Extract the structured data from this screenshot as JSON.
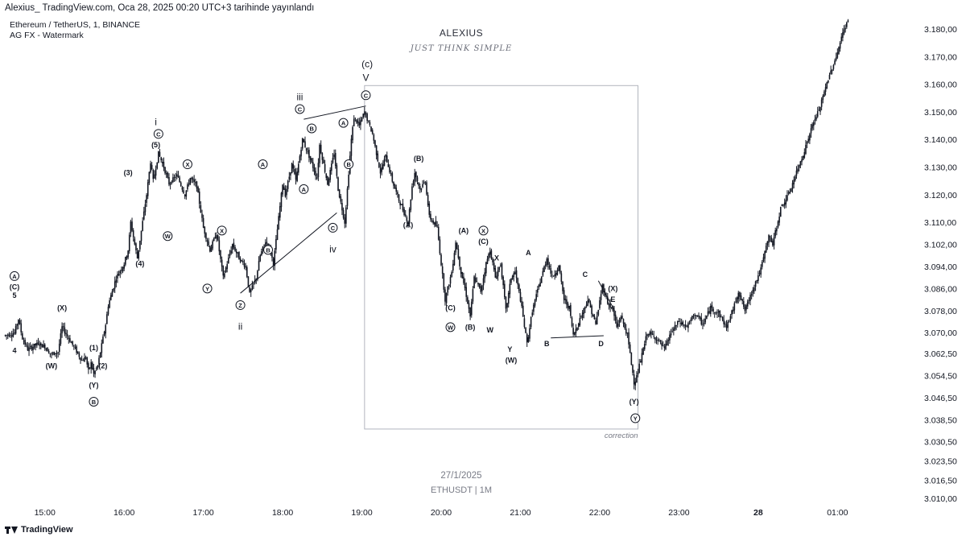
{
  "header": {
    "published_line": "Alexius_ TradingView.com, Oca 28, 2025 00:20 UTC+3 tarihinde yayınlandı",
    "symbol_line": "Ethereum / TetherUS, 1, BINANCE",
    "indicator_line": "AG FX - Watermark"
  },
  "watermark": {
    "title": "ALEXIUS",
    "subtitle": "JUST THINK SIMPLE",
    "date": "27/1/2025",
    "pair": "ETHUSDT | 1M"
  },
  "footer": {
    "brand": "TradingView"
  },
  "colors": {
    "candle": "#131722",
    "box": "#b2b5be",
    "line": "#131722"
  },
  "chart_data": {
    "type": "line",
    "price_ticks": [
      "3.180,00",
      "3.170,00",
      "3.160,00",
      "3.150,00",
      "3.140,00",
      "3.130,00",
      "3.120,00",
      "3.110,00",
      "3.102,00",
      "3.094,00",
      "3.086,00",
      "3.078,00",
      "3.070,00",
      "3.062,50",
      "3.054,50",
      "3.046,50",
      "3.038,50",
      "3.030,50",
      "3.023,50",
      "3.016,50",
      "3.010,00"
    ],
    "time_ticks": [
      "15:00",
      "16:00",
      "17:00",
      "18:00",
      "19:00",
      "20:00",
      "21:00",
      "22:00",
      "23:00",
      "28",
      "01:00"
    ],
    "x_unit": "minutes since 27/1/2025 14:30",
    "path": [
      [
        0,
        3069
      ],
      [
        7,
        3070
      ],
      [
        10,
        3075
      ],
      [
        13,
        3068
      ],
      [
        17,
        3064
      ],
      [
        25,
        3066
      ],
      [
        30,
        3065
      ],
      [
        35,
        3062
      ],
      [
        40,
        3063
      ],
      [
        43,
        3072
      ],
      [
        48,
        3068
      ],
      [
        53,
        3064
      ],
      [
        58,
        3060
      ],
      [
        61,
        3061
      ],
      [
        63,
        3056
      ],
      [
        65,
        3059
      ],
      [
        67,
        3055
      ],
      [
        70,
        3058
      ],
      [
        76,
        3073
      ],
      [
        78,
        3080
      ],
      [
        84,
        3090
      ],
      [
        90,
        3095
      ],
      [
        93,
        3100
      ],
      [
        95,
        3110
      ],
      [
        98,
        3102
      ],
      [
        100,
        3097
      ],
      [
        107,
        3120
      ],
      [
        110,
        3132
      ],
      [
        112,
        3125
      ],
      [
        116,
        3135
      ],
      [
        120,
        3130
      ],
      [
        124,
        3124
      ],
      [
        130,
        3127
      ],
      [
        136,
        3120
      ],
      [
        140,
        3126
      ],
      [
        145,
        3123
      ],
      [
        150,
        3108
      ],
      [
        155,
        3100
      ],
      [
        160,
        3106
      ],
      [
        165,
        3090
      ],
      [
        172,
        3102
      ],
      [
        177,
        3097
      ],
      [
        182,
        3094
      ],
      [
        185,
        3084
      ],
      [
        190,
        3090
      ],
      [
        193,
        3098
      ],
      [
        197,
        3103
      ],
      [
        200,
        3101
      ],
      [
        203,
        3095
      ],
      [
        210,
        3124
      ],
      [
        212,
        3120
      ],
      [
        217,
        3131
      ],
      [
        220,
        3125
      ],
      [
        225,
        3140
      ],
      [
        230,
        3134
      ],
      [
        236,
        3126
      ],
      [
        238,
        3138
      ],
      [
        244,
        3124
      ],
      [
        249,
        3135
      ],
      [
        252,
        3122
      ],
      [
        257,
        3110
      ],
      [
        262,
        3140
      ],
      [
        264,
        3148
      ],
      [
        268,
        3145
      ],
      [
        272,
        3150
      ],
      [
        278,
        3142
      ],
      [
        284,
        3128
      ],
      [
        288,
        3134
      ],
      [
        293,
        3125
      ],
      [
        298,
        3118
      ],
      [
        305,
        3110
      ],
      [
        308,
        3123
      ],
      [
        310,
        3128
      ],
      [
        314,
        3122
      ],
      [
        318,
        3125
      ],
      [
        321,
        3112
      ],
      [
        327,
        3108
      ],
      [
        330,
        3095
      ],
      [
        333,
        3082
      ],
      [
        338,
        3092
      ],
      [
        341,
        3103
      ],
      [
        345,
        3092
      ],
      [
        348,
        3086
      ],
      [
        352,
        3076
      ],
      [
        355,
        3090
      ],
      [
        360,
        3085
      ],
      [
        364,
        3095
      ],
      [
        367,
        3100
      ],
      [
        371,
        3090
      ],
      [
        375,
        3095
      ],
      [
        379,
        3078
      ],
      [
        383,
        3090
      ],
      [
        386,
        3092
      ],
      [
        390,
        3082
      ],
      [
        395,
        3066
      ],
      [
        399,
        3078
      ],
      [
        404,
        3087
      ],
      [
        410,
        3097
      ],
      [
        414,
        3090
      ],
      [
        419,
        3094
      ],
      [
        423,
        3082
      ],
      [
        427,
        3079
      ],
      [
        430,
        3069
      ],
      [
        435,
        3075
      ],
      [
        441,
        3082
      ],
      [
        447,
        3073
      ],
      [
        452,
        3087
      ],
      [
        456,
        3081
      ],
      [
        460,
        3078
      ],
      [
        463,
        3072
      ],
      [
        466,
        3076
      ],
      [
        471,
        3069
      ],
      [
        476,
        3052
      ],
      [
        478,
        3054
      ],
      [
        481,
        3060
      ],
      [
        486,
        3070
      ],
      [
        493,
        3068
      ],
      [
        499,
        3064
      ],
      [
        504,
        3070
      ],
      [
        510,
        3074
      ],
      [
        516,
        3072
      ],
      [
        522,
        3077
      ],
      [
        528,
        3073
      ],
      [
        534,
        3079
      ],
      [
        540,
        3077
      ],
      [
        546,
        3072
      ],
      [
        552,
        3080
      ],
      [
        555,
        3085
      ],
      [
        560,
        3078
      ],
      [
        566,
        3086
      ],
      [
        572,
        3093
      ],
      [
        578,
        3105
      ],
      [
        581,
        3102
      ],
      [
        587,
        3115
      ],
      [
        593,
        3120
      ],
      [
        599,
        3128
      ],
      [
        605,
        3136
      ],
      [
        611,
        3145
      ],
      [
        617,
        3152
      ],
      [
        623,
        3162
      ],
      [
        629,
        3170
      ],
      [
        635,
        3180
      ],
      [
        638,
        3183
      ]
    ],
    "box": {
      "x": [
        272,
        479
      ],
      "y": [
        3035.1,
        3159.5
      ],
      "label": "correction"
    },
    "trend_lines": [
      [
        [
          178,
          3084.3
        ],
        [
          251,
          3113.4
        ]
      ],
      [
        [
          226,
          3147.3
        ],
        [
          273,
          3152.1
        ]
      ],
      [
        [
          449,
          3088.8
        ],
        [
          461,
          3078.3
        ]
      ],
      [
        [
          413,
          3068.1
        ],
        [
          453,
          3068.9
        ]
      ]
    ],
    "labels": [
      {
        "t": "5",
        "x": 7,
        "y": 3083.5
      },
      {
        "t": "4",
        "x": 7,
        "y": 3063.5
      },
      {
        "t": "(C)",
        "x": 7,
        "y": 3086.5
      },
      {
        "t": "A",
        "c": true,
        "x": 7,
        "y": 3090.5
      },
      {
        "t": "(X)",
        "x": 43,
        "y": 3079
      },
      {
        "t": "(W)",
        "x": 35,
        "y": 3058
      },
      {
        "t": "(1)",
        "x": 67,
        "y": 3064.5
      },
      {
        "t": "(2)",
        "x": 74,
        "y": 3058
      },
      {
        "t": "(Y)",
        "x": 67,
        "y": 3051
      },
      {
        "t": "B",
        "c": true,
        "x": 67,
        "y": 3045
      },
      {
        "t": "(3)",
        "x": 93,
        "y": 3128
      },
      {
        "t": "(4)",
        "x": 102,
        "y": 3095
      },
      {
        "t": "(5)",
        "x": 114,
        "y": 3138
      },
      {
        "t": "C",
        "c": true,
        "x": 116,
        "y": 3142
      },
      {
        "t": "i",
        "lg": true,
        "x": 114,
        "y": 3146
      },
      {
        "t": "X",
        "c": true,
        "x": 138,
        "y": 3131
      },
      {
        "t": "W",
        "c": true,
        "x": 123,
        "y": 3105
      },
      {
        "t": "X",
        "c": true,
        "x": 164,
        "y": 3107
      },
      {
        "t": "Y",
        "c": true,
        "x": 153,
        "y": 3086
      },
      {
        "t": "Z",
        "c": true,
        "x": 178,
        "y": 3080
      },
      {
        "t": "ii",
        "lg": true,
        "x": 178,
        "y": 3072
      },
      {
        "t": "A",
        "c": true,
        "x": 195,
        "y": 3131
      },
      {
        "t": "B",
        "c": true,
        "x": 199,
        "y": 3100
      },
      {
        "t": "C",
        "c": true,
        "x": 223,
        "y": 3151
      },
      {
        "t": "B",
        "c": true,
        "x": 232,
        "y": 3144
      },
      {
        "t": "A",
        "c": true,
        "x": 226,
        "y": 3122
      },
      {
        "t": "iii",
        "lg": true,
        "x": 223,
        "y": 3155
      },
      {
        "t": "A",
        "c": true,
        "x": 256,
        "y": 3146
      },
      {
        "t": "B",
        "c": true,
        "x": 260,
        "y": 3131
      },
      {
        "t": "C",
        "c": true,
        "x": 248,
        "y": 3108
      },
      {
        "t": "iv",
        "lg": true,
        "x": 248,
        "y": 3100
      },
      {
        "t": "C",
        "c": true,
        "x": 273,
        "y": 3156
      },
      {
        "t": "V",
        "lg": true,
        "x": 273,
        "y": 3162
      },
      {
        "t": "(c)",
        "lg": true,
        "x": 274,
        "y": 3167
      },
      {
        "t": "(B)",
        "x": 313,
        "y": 3133
      },
      {
        "t": "(A)",
        "x": 305,
        "y": 3109
      },
      {
        "t": "(A)",
        "x": 347,
        "y": 3107
      },
      {
        "t": "X",
        "c": true,
        "x": 362,
        "y": 3107
      },
      {
        "t": "(C)",
        "x": 362,
        "y": 3103
      },
      {
        "t": "(C)",
        "x": 337,
        "y": 3079
      },
      {
        "t": "W",
        "c": true,
        "x": 337,
        "y": 3072
      },
      {
        "t": "(B)",
        "x": 352,
        "y": 3072
      },
      {
        "t": "X",
        "x": 372,
        "y": 3097
      },
      {
        "t": "W",
        "x": 367,
        "y": 3071
      },
      {
        "t": "Y",
        "x": 382,
        "y": 3064
      },
      {
        "t": "(W)",
        "x": 383,
        "y": 3060
      },
      {
        "t": "A",
        "x": 396,
        "y": 3099
      },
      {
        "t": "B",
        "x": 410,
        "y": 3066
      },
      {
        "t": "C",
        "x": 439,
        "y": 3091
      },
      {
        "t": "(X)",
        "x": 460,
        "y": 3086
      },
      {
        "t": "E",
        "x": 460,
        "y": 3082
      },
      {
        "t": "D",
        "x": 451,
        "y": 3066
      },
      {
        "t": "(Y)",
        "x": 476,
        "y": 3045
      },
      {
        "t": "Y",
        "c": true,
        "x": 477,
        "y": 3039
      }
    ]
  }
}
